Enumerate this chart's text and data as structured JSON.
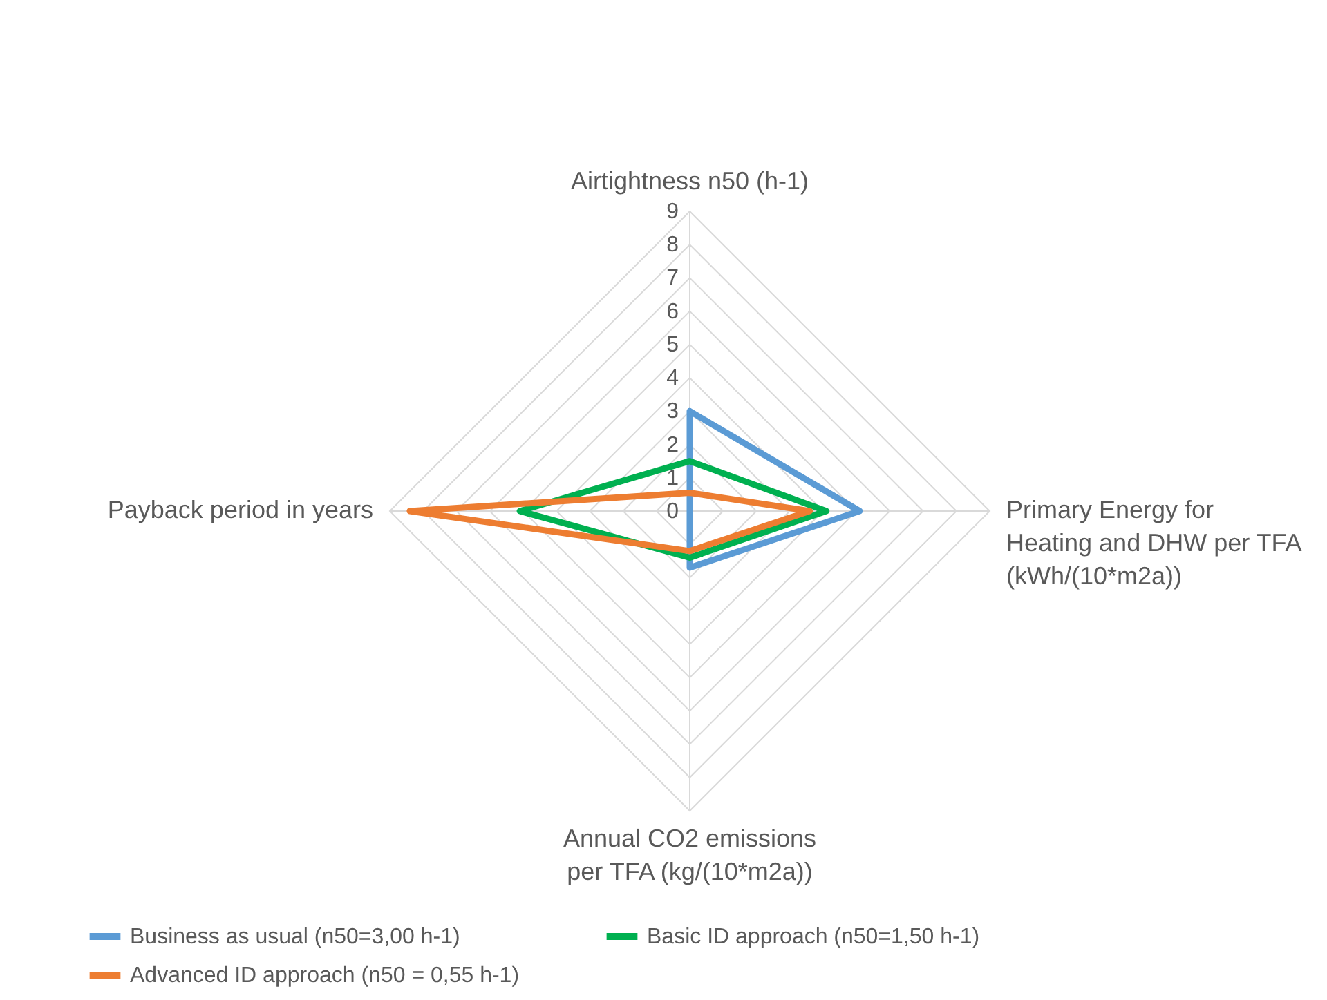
{
  "chart_data": {
    "type": "radar",
    "categories": [
      "Airtightness n50 (h-1)",
      "Primary Energy for Heating and DHW per TFA (kWh/(10*m2a))",
      "Annual CO2 emissions per TFA (kg/(10*m2a))",
      "Payback period in years"
    ],
    "series": [
      {
        "name": "Business as usual (n50=3,00 h-1)",
        "color": "#5b9bd5",
        "values": [
          3.0,
          5.1,
          1.7,
          0
        ]
      },
      {
        "name": "Basic ID approach (n50=1,50 h-1)",
        "color": "#00b050",
        "values": [
          1.5,
          4.1,
          1.4,
          5.1
        ]
      },
      {
        "name": "Advanced ID approach (n50 = 0,55 h-1)",
        "color": "#ed7d31",
        "values": [
          0.55,
          3.6,
          1.2,
          8.4
        ]
      }
    ],
    "ylim": [
      0,
      9
    ],
    "yticks": [
      0,
      1,
      2,
      3,
      4,
      5,
      6,
      7,
      8,
      9
    ],
    "grid": true,
    "legend": "bottom",
    "line_style": "solid",
    "marker": "none"
  }
}
